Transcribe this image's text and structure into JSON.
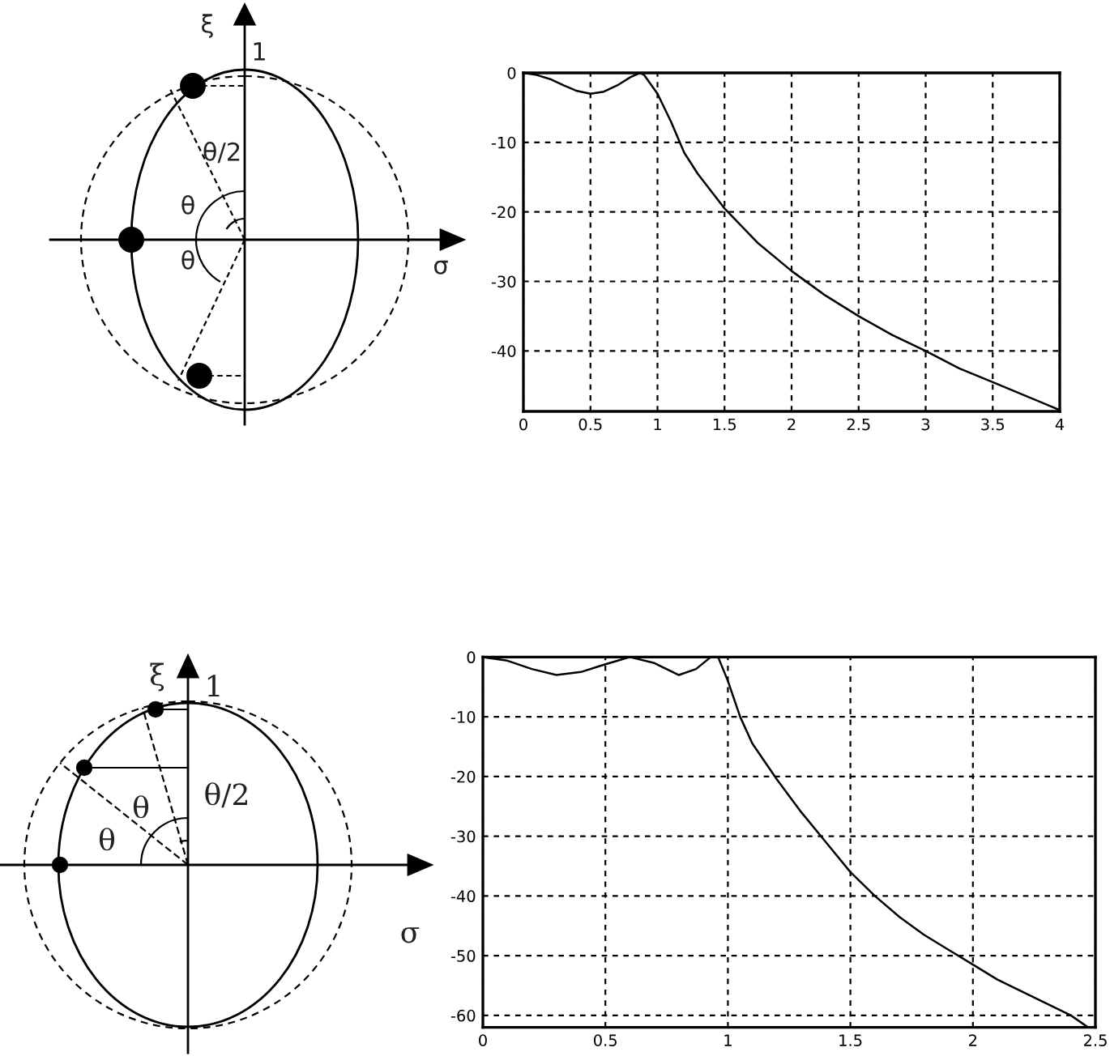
{
  "chart_data": [
    {
      "type": "other",
      "annotations": [
        "ξ",
        "1",
        "θ/2",
        "θ",
        "θ",
        "σ"
      ]
    },
    {
      "type": "line",
      "x": [
        0,
        0.1,
        0.2,
        0.3,
        0.4,
        0.5,
        0.6,
        0.7,
        0.8,
        0.87,
        0.9,
        1.0,
        1.1,
        1.2,
        1.3,
        1.4,
        1.5,
        1.75,
        2,
        2.25,
        2.5,
        2.75,
        3,
        3.25,
        3.5,
        3.75,
        4
      ],
      "series": [
        {
          "color": "#000000",
          "values": [
            0,
            -0.3,
            -0.9,
            -1.8,
            -2.6,
            -3.0,
            -2.7,
            -1.8,
            -0.6,
            0,
            -0.3,
            -3.0,
            -7,
            -11.5,
            -14.5,
            -17,
            -19.5,
            -24.5,
            -28.5,
            -32,
            -35,
            -37.7,
            -40,
            -42.5,
            -44.5,
            -46.5,
            -48.5
          ]
        }
      ],
      "xlim": [
        0,
        4
      ],
      "ylim": [
        -48.7,
        0
      ],
      "xticks": [
        0,
        0.5,
        1,
        1.5,
        2,
        2.5,
        3,
        3.5,
        4
      ],
      "yticks": [
        -40,
        -30,
        -20,
        -10,
        0
      ],
      "grid": true,
      "line_style": "solid"
    },
    {
      "type": "other",
      "annotations": [
        "ξ",
        "1",
        "θ/2",
        "θ",
        "θ",
        "σ"
      ]
    },
    {
      "type": "line",
      "x": [
        0,
        0.1,
        0.2,
        0.3,
        0.4,
        0.5,
        0.6,
        0.7,
        0.8,
        0.87,
        0.93,
        0.96,
        1.0,
        1.05,
        1.1,
        1.2,
        1.3,
        1.4,
        1.5,
        1.6,
        1.7,
        1.8,
        1.9,
        2.0,
        2.1,
        2.2,
        2.3,
        2.4,
        2.47
      ],
      "series": [
        {
          "color": "#000000",
          "values": [
            0,
            -0.6,
            -2.0,
            -3.0,
            -2.5,
            -1.2,
            0,
            -1.0,
            -3.0,
            -2.0,
            0,
            0,
            -4,
            -10,
            -14.5,
            -20.5,
            -26,
            -31,
            -36,
            -40,
            -43.5,
            -46.5,
            -49,
            -51.5,
            -54,
            -56,
            -58,
            -60,
            -62
          ]
        }
      ],
      "xlim": [
        0,
        2.5
      ],
      "ylim": [
        -62,
        0
      ],
      "xticks": [
        0,
        0.5,
        1,
        1.5,
        2,
        2.5
      ],
      "yticks": [
        -60,
        -50,
        -40,
        -30,
        -20,
        -10,
        0
      ],
      "grid": true,
      "line_style": "solid"
    }
  ]
}
